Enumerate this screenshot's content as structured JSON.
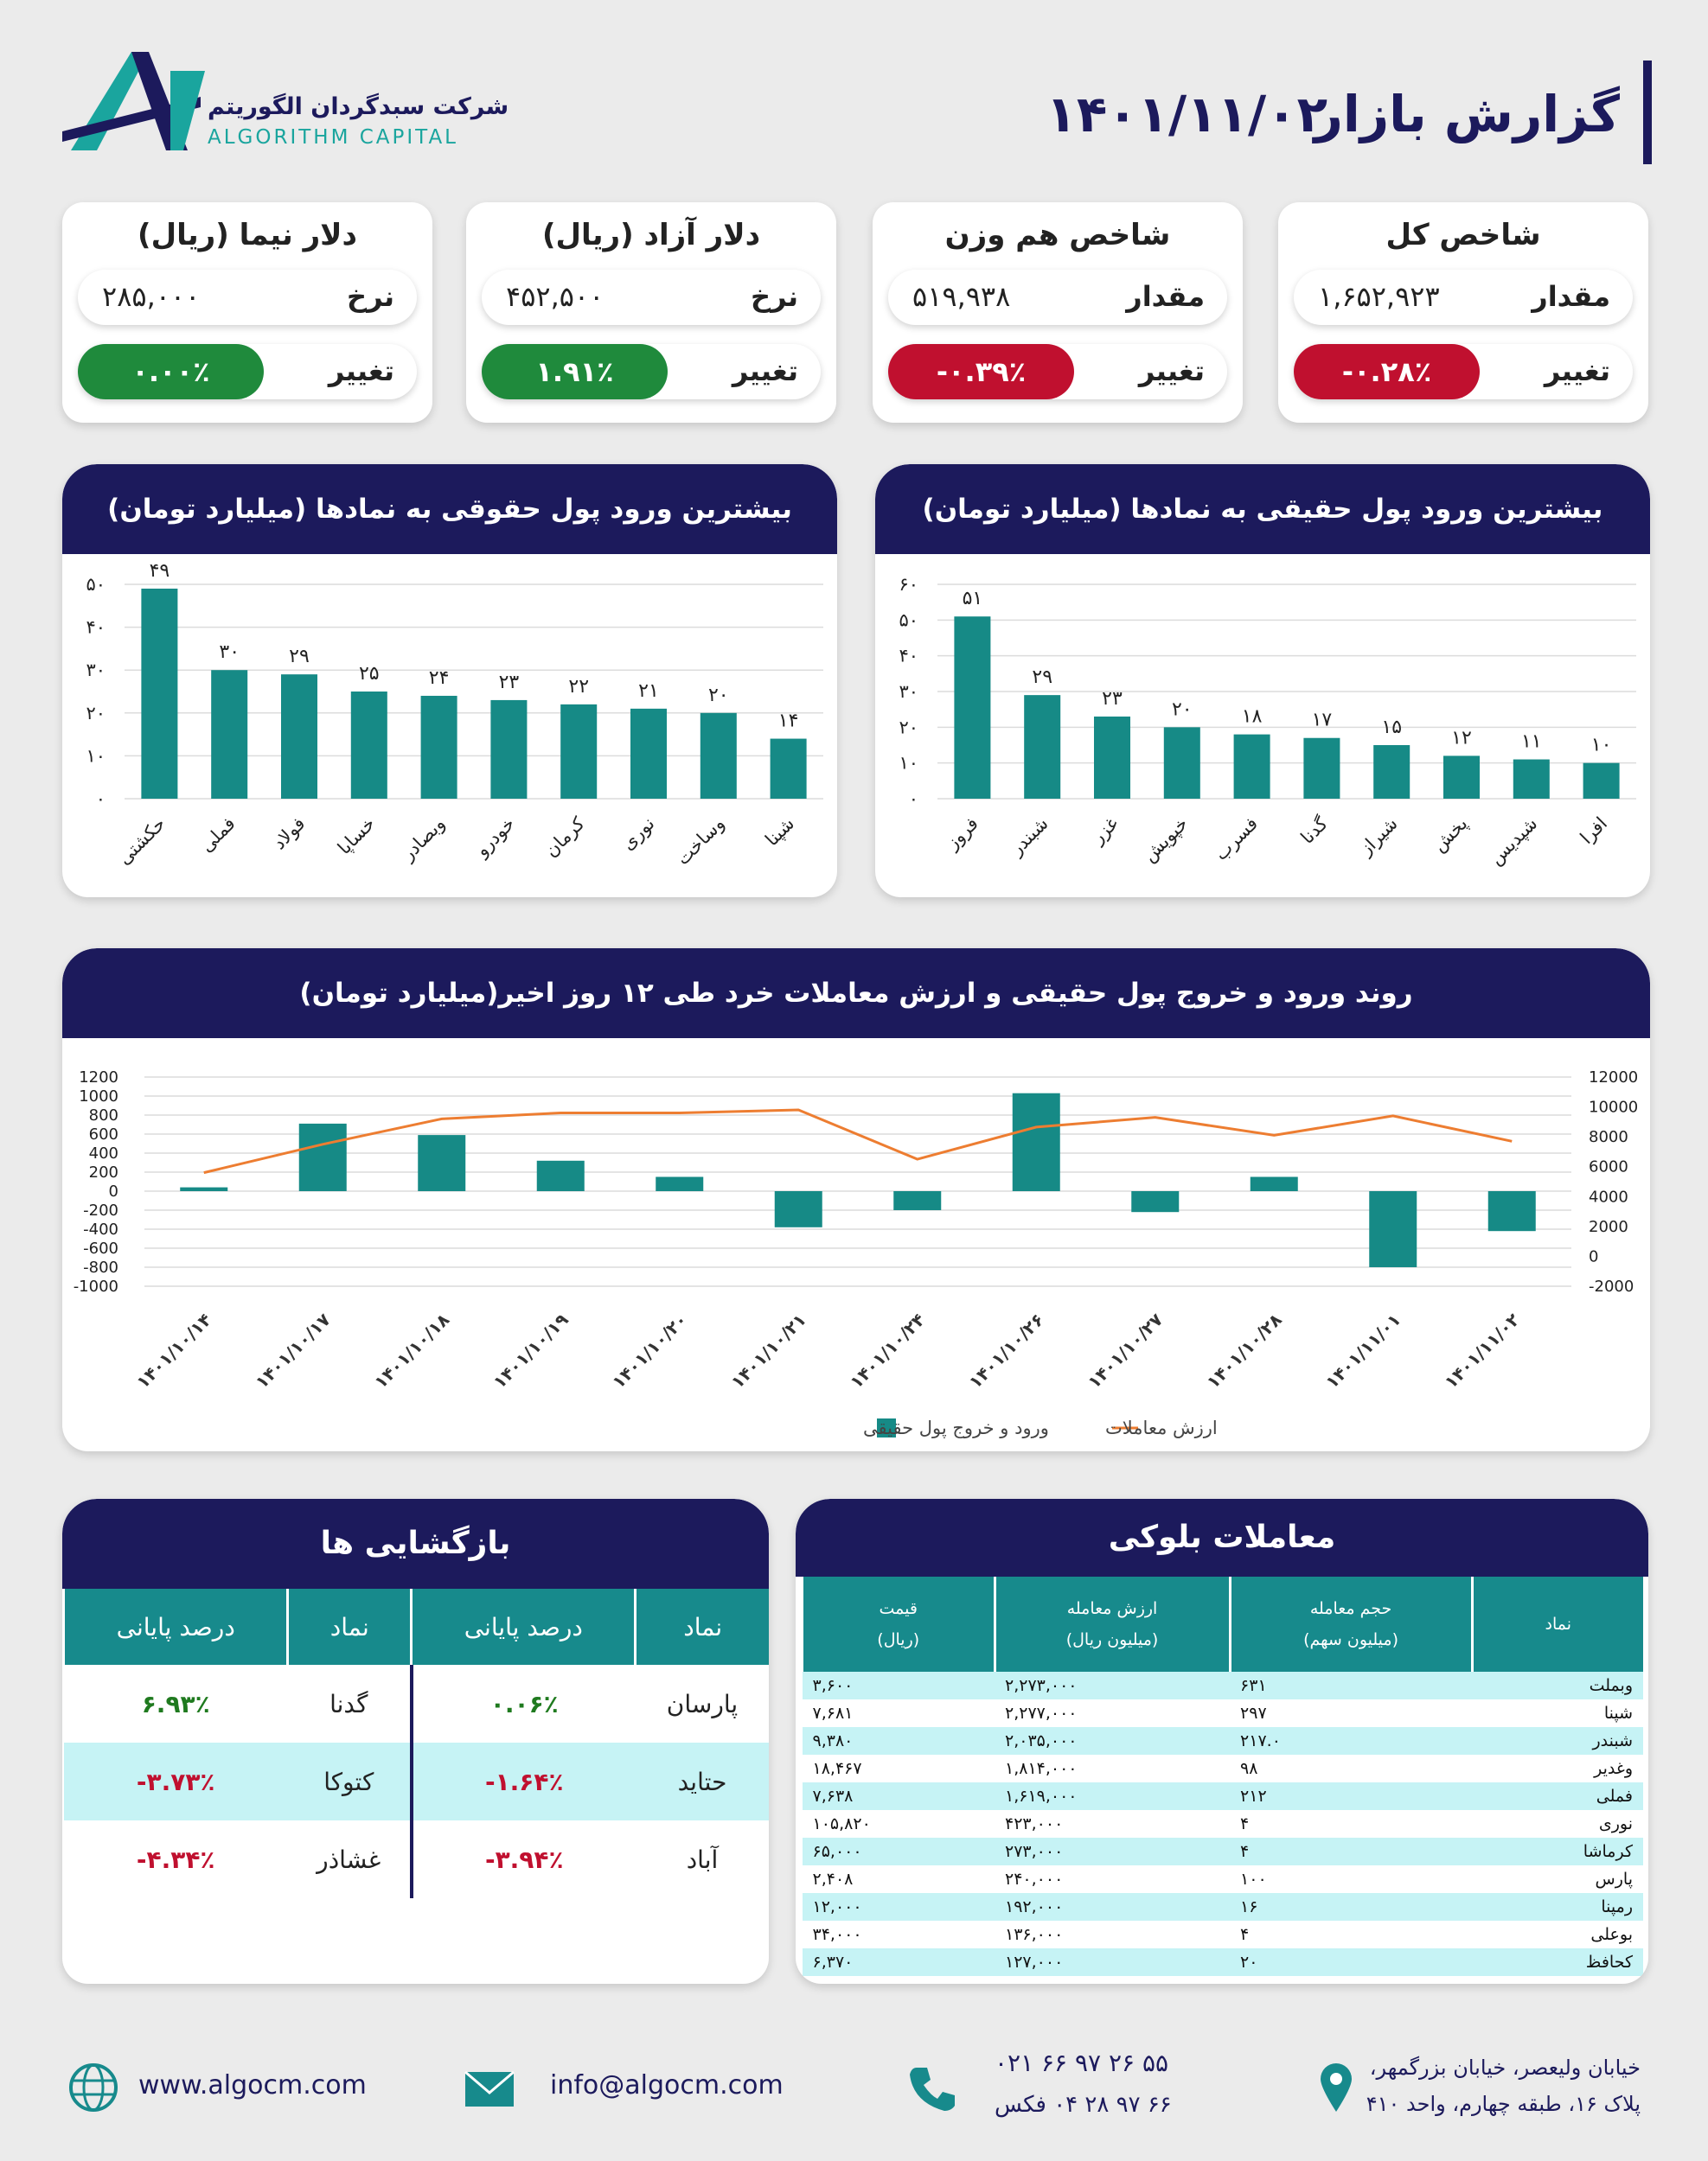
{
  "header": {
    "title": "گزارش بازار",
    "date": "۱۴۰۱/۱۱/۰۲",
    "company": "شرکت سبدگردان الگوریتم",
    "company_en": "ALGORITHM CAPITAL"
  },
  "cards": [
    {
      "title": "شاخص کل",
      "label": "مقدار",
      "value": "۱,۶۵۲,۹۲۳",
      "change_label": "تغییر",
      "change": "-۰.۲۸٪",
      "change_color": "#c0102f"
    },
    {
      "title": "شاخص هم وزن",
      "label": "مقدار",
      "value": "۵۱۹,۹۳۸",
      "change_label": "تغییر",
      "change": "-۰.۳۹٪",
      "change_color": "#c0102f"
    },
    {
      "title": "دلار آزاد (ریال)",
      "label": "نرخ",
      "value": "۴۵۲,۵۰۰",
      "change_label": "تغییر",
      "change": "۱.۹۱٪",
      "change_color": "#1f8a3c"
    },
    {
      "title": "دلار نیما (ریال)",
      "label": "نرخ",
      "value": "۲۸۵,۰۰۰",
      "change_label": "تغییر",
      "change": "۰.۰۰٪",
      "change_color": "#1f8a3c"
    }
  ],
  "chart_data": [
    {
      "type": "bar",
      "title": "بیشترین ورود پول حقیقی به نمادها (میلیارد تومان)",
      "categories": [
        "فروز",
        "شبندر",
        "غزر",
        "خپویش",
        "فسرب",
        "گدنا",
        "شیراز",
        "پخش",
        "شپدیس",
        "افرا"
      ],
      "values": [
        51,
        29,
        23,
        20,
        18,
        17,
        15,
        12,
        11,
        10
      ],
      "value_labels": [
        "۵۱",
        "۲۹",
        "۲۳",
        "۲۰",
        "۱۸",
        "۱۷",
        "۱۵",
        "۱۲",
        "۱۱",
        "۱۰"
      ],
      "color": "#168a86",
      "ylim": [
        0,
        60
      ],
      "yticks": [
        {
          "value": 0,
          "label": "۰"
        },
        {
          "value": 10,
          "label": "۱۰"
        },
        {
          "value": 20,
          "label": "۲۰"
        },
        {
          "value": 30,
          "label": "۳۰"
        },
        {
          "value": 40,
          "label": "۴۰"
        },
        {
          "value": 50,
          "label": "۵۰"
        },
        {
          "value": 60,
          "label": "۶۰"
        }
      ],
      "grid": true
    },
    {
      "type": "bar",
      "title": "بیشترین ورود پول حقوقی به نمادها (میلیارد تومان)",
      "categories": [
        "حکشتی",
        "فملی",
        "فولاد",
        "خساپا",
        "وبصادر",
        "خودرو",
        "کرمان",
        "نوری",
        "وساخت",
        "شپنا"
      ],
      "values": [
        49,
        30,
        29,
        25,
        24,
        23,
        22,
        21,
        20,
        14
      ],
      "value_labels": [
        "۴۹",
        "۳۰",
        "۲۹",
        "۲۵",
        "۲۴",
        "۲۳",
        "۲۲",
        "۲۱",
        "۲۰",
        "۱۴"
      ],
      "color": "#168a86",
      "ylim": [
        0,
        50
      ],
      "yticks": [
        {
          "value": 0,
          "label": "۰"
        },
        {
          "value": 10,
          "label": "۱۰"
        },
        {
          "value": 20,
          "label": "۲۰"
        },
        {
          "value": 30,
          "label": "۳۰"
        },
        {
          "value": 40,
          "label": "۴۰"
        },
        {
          "value": 50,
          "label": "۵۰"
        }
      ],
      "grid": true
    },
    {
      "type": "combo",
      "title": "روند ورود و خروج پول حقیقی و ارزش معاملات خرد طی ۱۲ روز اخیر(میلیارد تومان)",
      "x": [
        "۱۴۰۱/۱۰/۱۴",
        "۱۴۰۱/۱۰/۱۷",
        "۱۴۰۱/۱۰/۱۸",
        "۱۴۰۱/۱۰/۱۹",
        "۱۴۰۱/۱۰/۲۰",
        "۱۴۰۱/۱۰/۲۱",
        "۱۴۰۱/۱۰/۲۴",
        "۱۴۰۱/۱۰/۲۶",
        "۱۴۰۱/۱۰/۲۷",
        "۱۴۰۱/۱۰/۲۸",
        "۱۴۰۱/۱۱/۰۱",
        "۱۴۰۱/۱۱/۰۲"
      ],
      "series": [
        {
          "name": "ورود و خروج پول حقیقی",
          "type": "bar",
          "color": "#168a86",
          "values": [
            40,
            710,
            590,
            320,
            150,
            -380,
            -200,
            1030,
            -220,
            150,
            -800,
            -420
          ]
        },
        {
          "name": "ارزش معاملات",
          "type": "line",
          "axis": "y2",
          "color": "#ed7d31",
          "values": [
            5600,
            7500,
            9200,
            9600,
            9600,
            9800,
            6500,
            8650,
            9300,
            8100,
            9400,
            7700
          ]
        }
      ],
      "ylim": [
        -1000,
        1200
      ],
      "yticks": [
        -1000,
        -800,
        -600,
        -400,
        -200,
        0,
        200,
        400,
        600,
        800,
        1000,
        1200
      ],
      "y2lim": [
        -2000,
        12000
      ],
      "y2ticks": [
        -2000,
        0,
        2000,
        4000,
        6000,
        8000,
        10000,
        12000
      ],
      "grid": true,
      "legend": "bottom"
    }
  ],
  "returns": {
    "title": "بازگشایی ها",
    "headers": [
      "نماد",
      "درصد پایانی",
      "نماد",
      "درصد پایانی"
    ],
    "rows": [
      [
        "پارسان",
        "۰.۰۶٪",
        "گدنا",
        "۶.۹۳٪"
      ],
      [
        "حتاید",
        "-۱.۶۴٪",
        "کتوکا",
        "-۳.۷۳٪"
      ],
      [
        "آباد",
        "-۳.۹۴٪",
        "غشاذر",
        "-۴.۳۴٪"
      ]
    ],
    "positive_color": "#1f7a1f",
    "negative_color": "#c0102f"
  },
  "block_trades": {
    "title": "معاملات بلوکی",
    "headers": [
      {
        "title": "نماد"
      },
      {
        "title": "حجم معامله",
        "unit": "(میلیون سهم)"
      },
      {
        "title": "ارزش معامله",
        "unit": "(میلیون ریال)"
      },
      {
        "title": "قیمت",
        "unit": "(ریال)"
      }
    ],
    "rows": [
      [
        "وبملت",
        "۶۳۱",
        "۲,۲۷۳,۰۰۰",
        "۳,۶۰۰"
      ],
      [
        "شپنا",
        "۲۹۷",
        "۲,۲۷۷,۰۰۰",
        "۷,۶۸۱"
      ],
      [
        "شبندر",
        "۲۱۷.۰",
        "۲,۰۳۵,۰۰۰",
        "۹,۳۸۰"
      ],
      [
        "وغدیر",
        "۹۸",
        "۱,۸۱۴,۰۰۰",
        "۱۸,۴۶۷"
      ],
      [
        "فملی",
        "۲۱۲",
        "۱,۶۱۹,۰۰۰",
        "۷,۶۳۸"
      ],
      [
        "نوری",
        "۴",
        "۴۲۳,۰۰۰",
        "۱۰۵,۸۲۰"
      ],
      [
        "کرماشا",
        "۴",
        "۲۷۳,۰۰۰",
        "۶۵,۰۰۰"
      ],
      [
        "پارس",
        "۱۰۰",
        "۲۴۰,۰۰۰",
        "۲,۴۰۸"
      ],
      [
        "رمپنا",
        "۱۶",
        "۱۹۲,۰۰۰",
        "۱۲,۰۰۰"
      ],
      [
        "بوعلی",
        "۴",
        "۱۳۶,۰۰۰",
        "۳۴,۰۰۰"
      ],
      [
        "کحافظ",
        "۲۰",
        "۱۲۷,۰۰۰",
        "۶,۳۷۰"
      ]
    ]
  },
  "footer": {
    "website": "www.algocm.com",
    "email": "info@algocm.com",
    "phone": "۰۲۱ ۶۶ ۹۷ ۲۶ ۵۵",
    "fax": "۶۶ ۹۷ ۲۸ ۰۴ فکس",
    "address": [
      "خیابان ولیعصر، خیابان بزرگمهر،",
      "پلاک ۱۶، طبقه چهارم، واحد ۴۱۰"
    ]
  }
}
